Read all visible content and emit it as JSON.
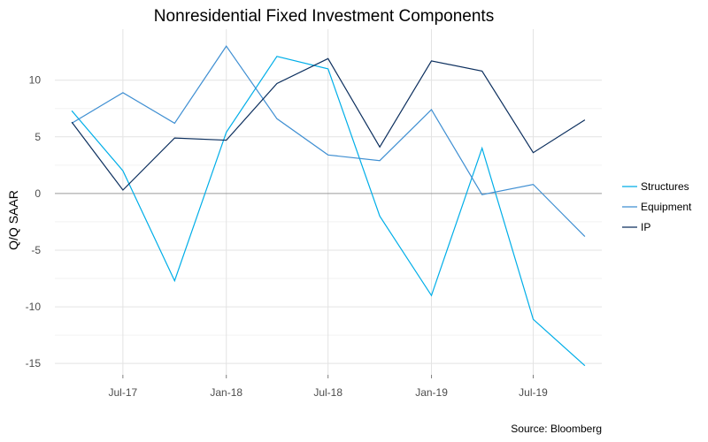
{
  "chart_data": {
    "type": "line",
    "title": "Nonresidential Fixed Investment Components",
    "xlabel": "",
    "ylabel": "Q/Q SAAR",
    "source": "Source: Bloomberg",
    "x": [
      "2017-04-01",
      "2017-07-01",
      "2017-10-01",
      "2018-01-01",
      "2018-04-01",
      "2018-07-01",
      "2018-10-01",
      "2019-01-01",
      "2019-04-01",
      "2019-07-01",
      "2019-10-01"
    ],
    "x_tick_labels": [
      "Jul-17",
      "Jan-18",
      "Jul-18",
      "Jan-19",
      "Jul-19"
    ],
    "x_tick_dates": [
      "2017-07-01",
      "2018-01-01",
      "2018-07-01",
      "2019-01-01",
      "2019-07-01"
    ],
    "y_ticks": [
      -15,
      -10,
      -5,
      0,
      5,
      10
    ],
    "y_tick_labels": [
      "-15",
      "-10",
      "-5",
      "0",
      "5",
      "10"
    ],
    "ylim": [
      -16,
      14.5
    ],
    "grid": true,
    "legend_position": "right",
    "series": [
      {
        "name": "Structures",
        "color": "#00aee8",
        "values": [
          7.3,
          2.0,
          -7.7,
          5.4,
          12.1,
          11.0,
          -2.0,
          -9.0,
          4.0,
          -11.1,
          -15.2
        ]
      },
      {
        "name": "Equipment",
        "color": "#3f8fd2",
        "values": [
          6.2,
          8.9,
          6.2,
          13.0,
          6.6,
          3.4,
          2.9,
          7.4,
          -0.1,
          0.8,
          -3.8
        ]
      },
      {
        "name": "IP",
        "color": "#0c2f5e",
        "values": [
          6.3,
          0.3,
          4.9,
          4.7,
          9.7,
          11.9,
          4.1,
          11.7,
          10.8,
          3.6,
          6.5
        ]
      }
    ]
  }
}
